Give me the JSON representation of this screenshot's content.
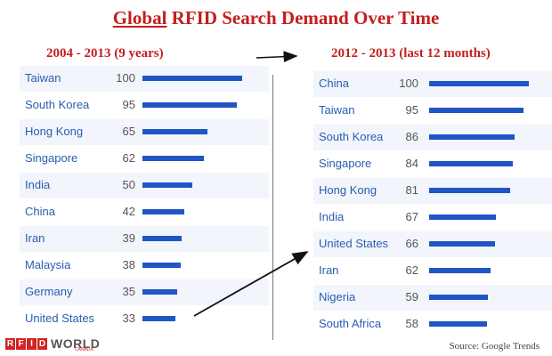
{
  "title": {
    "prefix": "Global",
    "rest": " RFID Search Demand Over Time"
  },
  "source": "Source: Google Trends",
  "logo": {
    "letters": [
      "R",
      "F",
      "I",
      "D"
    ],
    "word": "WORLD",
    "sub": "CANADA"
  },
  "colors": {
    "title": "#c41e1e",
    "bar": "#2056c4",
    "country": "#2a5db0"
  },
  "chart_data": [
    {
      "type": "bar",
      "title": "2004 - 2013 (9 years)",
      "orientation": "horizontal",
      "categories": [
        "Taiwan",
        "South Korea",
        "Hong Kong",
        "Singapore",
        "India",
        "China",
        "Iran",
        "Malaysia",
        "Germany",
        "United States"
      ],
      "values": [
        100,
        95,
        65,
        62,
        50,
        42,
        39,
        38,
        35,
        33
      ],
      "ylim": [
        0,
        100
      ]
    },
    {
      "type": "bar",
      "title": "2012 - 2013 (last 12 months)",
      "orientation": "horizontal",
      "categories": [
        "China",
        "Taiwan",
        "South Korea",
        "Singapore",
        "Hong Kong",
        "India",
        "United States",
        "Iran",
        "Nigeria",
        "South Africa"
      ],
      "values": [
        100,
        95,
        86,
        84,
        81,
        67,
        66,
        62,
        59,
        58
      ],
      "ylim": [
        0,
        100
      ]
    }
  ]
}
